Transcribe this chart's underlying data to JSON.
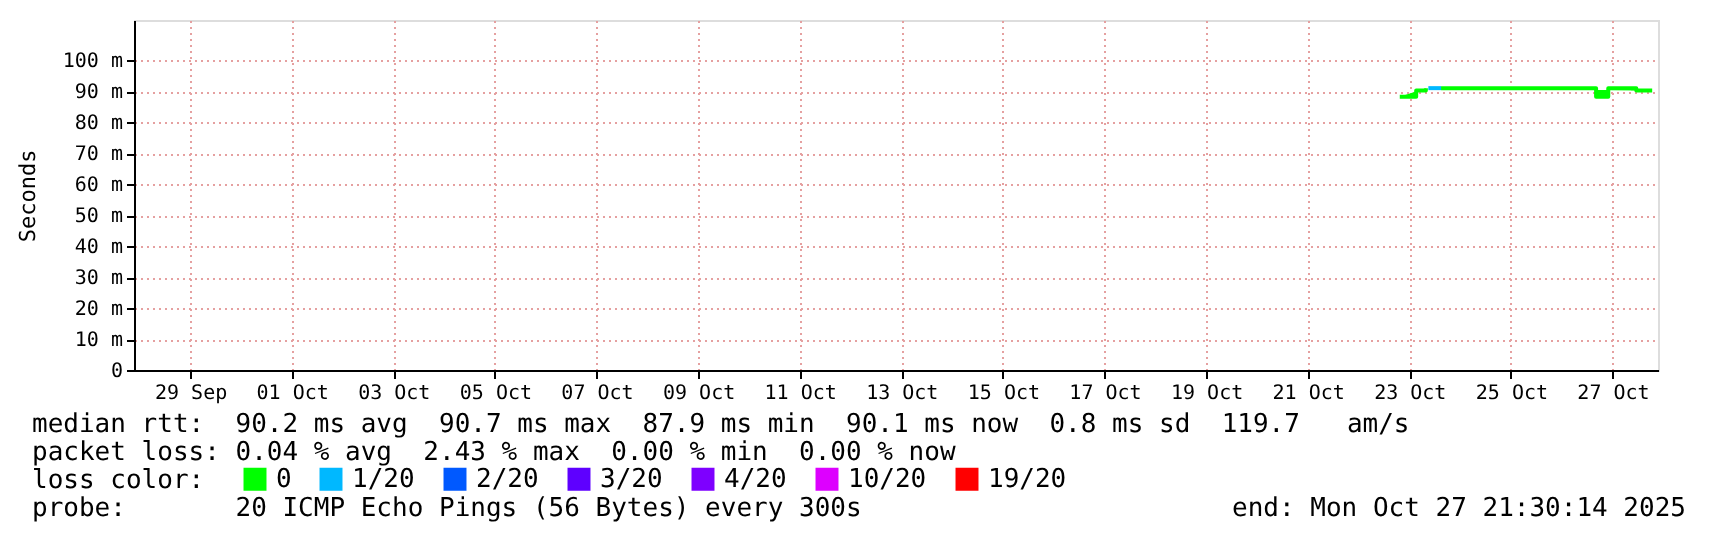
{
  "chart_data": {
    "type": "step",
    "ylabel": "Seconds",
    "legend_title": "loss color:",
    "legend": "bottom left",
    "xlim": [
      "2025-09-27T21:30",
      "2025-10-27T21:30"
    ],
    "xticks": [
      {
        "value": "2025-09-29",
        "label": "29 Sep"
      },
      {
        "value": "2025-10-01",
        "label": "01 Oct"
      },
      {
        "value": "2025-10-03",
        "label": "03 Oct"
      },
      {
        "value": "2025-10-05",
        "label": "05 Oct"
      },
      {
        "value": "2025-10-07",
        "label": "07 Oct"
      },
      {
        "value": "2025-10-09",
        "label": "09 Oct"
      },
      {
        "value": "2025-10-11",
        "label": "11 Oct"
      },
      {
        "value": "2025-10-13",
        "label": "13 Oct"
      },
      {
        "value": "2025-10-15",
        "label": "15 Oct"
      },
      {
        "value": "2025-10-17",
        "label": "17 Oct"
      },
      {
        "value": "2025-10-19",
        "label": "19 Oct"
      },
      {
        "value": "2025-10-21",
        "label": "21 Oct"
      },
      {
        "value": "2025-10-23",
        "label": "23 Oct"
      },
      {
        "value": "2025-10-25",
        "label": "25 Oct"
      },
      {
        "value": "2025-10-27",
        "label": "27 Oct"
      }
    ],
    "ylim": [
      0,
      113
    ],
    "yticks": [
      0,
      {
        "value": 10,
        "label": "10 m"
      },
      {
        "value": 20,
        "label": "20 m"
      },
      {
        "value": 30,
        "label": "30 m"
      },
      {
        "value": 40,
        "label": "40 m"
      },
      {
        "value": 50,
        "label": "50 m"
      },
      {
        "value": 60,
        "label": "60 m"
      },
      {
        "value": 70,
        "label": "70 m"
      },
      {
        "value": 80,
        "label": "80 m"
      },
      {
        "value": 90,
        "label": "90 m"
      },
      {
        "value": 100,
        "label": "100 m"
      }
    ],
    "grid": true,
    "marker": "none",
    "line_style": "solid",
    "x": [
      "2025-10-22T19:30",
      "2025-10-23T03:15",
      "2025-10-23T07:50",
      "2025-10-23T09:00",
      "2025-10-23T15:00",
      "2025-10-26T16:15",
      "2025-10-26T22:00",
      "2025-10-27T11:15",
      "2025-10-27T18:45"
    ],
    "series": [
      {
        "name": "0",
        "color": "#00ff00",
        "values": [
          88.2,
          90.2,
          91,
          null,
          91,
          88.2,
          91,
          90.2,
          90.2
        ]
      },
      {
        "name": "1/20",
        "color": "#00b8ff",
        "values": [
          null,
          null,
          null,
          91,
          91,
          null,
          null,
          null,
          null
        ]
      },
      {
        "name": "2/20",
        "color": "#0059ff",
        "values": [
          null,
          null,
          null,
          null,
          null,
          null,
          null,
          null,
          null
        ]
      },
      {
        "name": "3/20",
        "color": "#5e00ff",
        "values": [
          null,
          null,
          null,
          null,
          null,
          null,
          null,
          null,
          null
        ]
      },
      {
        "name": "4/20",
        "color": "#7e00ff",
        "values": [
          null,
          null,
          null,
          null,
          null,
          null,
          null,
          null,
          null
        ]
      },
      {
        "name": "10/20",
        "color": "#dd00ff",
        "values": [
          null,
          null,
          null,
          null,
          null,
          null,
          null,
          null,
          null
        ]
      },
      {
        "name": "19/20",
        "color": "#ff0000",
        "values": [
          null,
          null,
          null,
          null,
          null,
          null,
          null,
          null,
          null
        ]
      }
    ],
    "annotations": [
      "median rtt:  90.2 ms avg  90.7 ms max  87.9 ms min  90.1 ms now  0.8 ms sd  119.7   am/s",
      "packet loss: 0.04 % avg  2.43 % max  0.00 % min  0.00 % now",
      "probe:       20 ICMP Echo Pings (56 Bytes) every 300s",
      "end: Mon Oct 27 21:30:14 2025"
    ]
  }
}
